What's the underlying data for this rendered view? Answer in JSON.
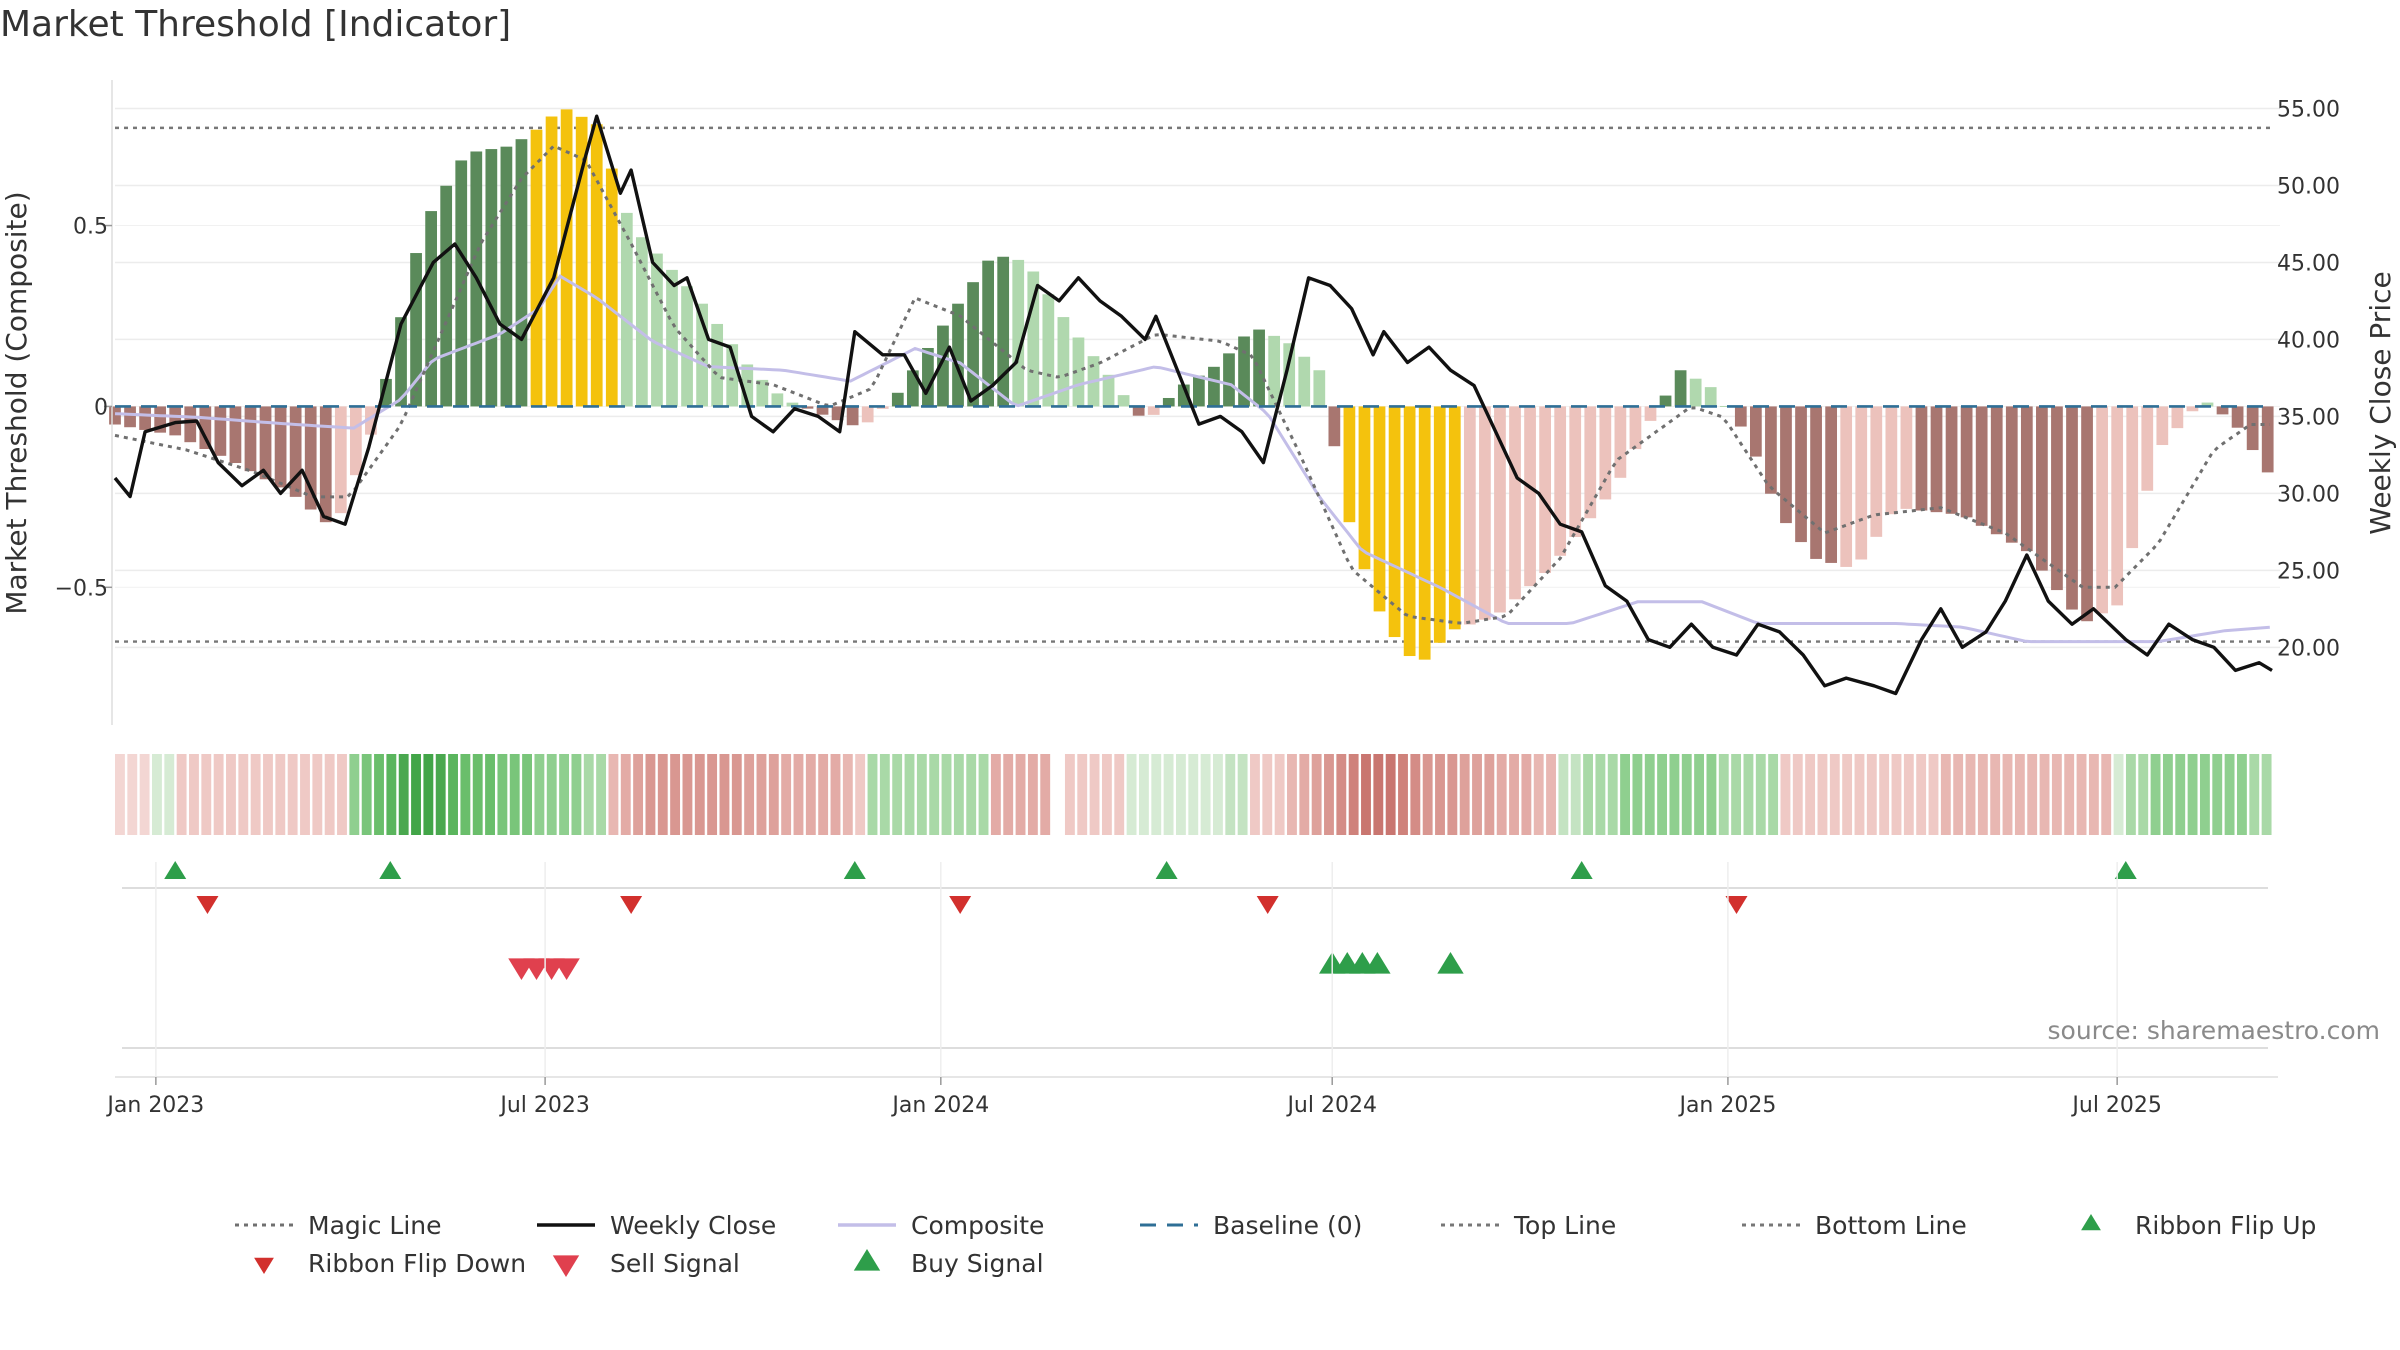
{
  "title": "Market Threshold [Indicator]",
  "source": "source: sharemaestro.com",
  "colors": {
    "bull_strong": "#5a8a5a",
    "bull_light": "#b0d8ae",
    "bear_strong": "#a87670",
    "bear_light": "#ecc2bc",
    "extreme": "#f4c20d",
    "weekly_close": "#111111",
    "composite": "#c3bee8",
    "magic_line": "#707070",
    "baseline": "#2f6f96",
    "threshold_line": "#777777",
    "signal_up": "#2e9e4a",
    "signal_down": "#d2302d",
    "sell_signal": "#e0404e"
  },
  "legend": [
    {
      "label": "Magic Line",
      "kind": "dotted",
      "color": "#707070"
    },
    {
      "label": "Weekly Close",
      "kind": "solid",
      "color": "#111111"
    },
    {
      "label": "Composite",
      "kind": "solid",
      "color": "#c3bee8"
    },
    {
      "label": "Baseline (0)",
      "kind": "dashed",
      "color": "#2f6f96"
    },
    {
      "label": "Top Line",
      "kind": "dotted",
      "color": "#777777"
    },
    {
      "label": "Bottom Line",
      "kind": "dotted",
      "color": "#777777"
    },
    {
      "label": "Ribbon Flip Up",
      "kind": "tri-up",
      "color": "#2e9e4a"
    },
    {
      "label": "Ribbon Flip Down",
      "kind": "tri-down",
      "color": "#d2302d"
    },
    {
      "label": "Sell Signal",
      "kind": "tri-down-lg",
      "color": "#e0404e"
    },
    {
      "label": "Buy Signal",
      "kind": "tri-up-lg",
      "color": "#2e9e4a"
    }
  ],
  "chart_data": {
    "type": "bar",
    "ylabel_left": "Market Threshold (Composite)",
    "ylabel_right": "Weekly Close Price",
    "ylim_left": [
      -0.9,
      0.93
    ],
    "ylim_right": [
      14.5,
      57.5
    ],
    "y_ticks_left": [
      {
        "value": 0.5,
        "label": "0.5"
      },
      {
        "value": 0,
        "label": "0"
      },
      {
        "value": -0.5,
        "label": "−0.5"
      }
    ],
    "y_ticks_right": [
      {
        "value": 55,
        "label": "55.00"
      },
      {
        "value": 50,
        "label": "50.00"
      },
      {
        "value": 45,
        "label": "45.00"
      },
      {
        "value": 40,
        "label": "40.00"
      },
      {
        "value": 35,
        "label": "35.00"
      },
      {
        "value": 30,
        "label": "30.00"
      },
      {
        "value": 25,
        "label": "25.00"
      },
      {
        "value": 20,
        "label": "20.00"
      }
    ],
    "x_range": [
      "2022-12-13",
      "2025-09-11"
    ],
    "x_ticks": [
      {
        "date": "2023-01-01",
        "label": "Jan 2023"
      },
      {
        "date": "2023-07-01",
        "label": "Jul 2023"
      },
      {
        "date": "2024-01-01",
        "label": "Jan 2024"
      },
      {
        "date": "2024-07-01",
        "label": "Jul 2024"
      },
      {
        "date": "2025-01-01",
        "label": "Jan 2025"
      },
      {
        "date": "2025-07-01",
        "label": "Jul 2025"
      }
    ],
    "top_line": 0.77,
    "bottom_line": -0.65,
    "baseline": 0,
    "composite_keypoints": [
      [
        "2022-12-13",
        -0.02
      ],
      [
        "2023-01-20",
        -0.03
      ],
      [
        "2023-03-07",
        -0.05
      ],
      [
        "2023-04-03",
        -0.06
      ],
      [
        "2023-04-25",
        0.02
      ],
      [
        "2023-05-10",
        0.13
      ],
      [
        "2023-06-10",
        0.2
      ],
      [
        "2023-06-28",
        0.27
      ],
      [
        "2023-07-08",
        0.36
      ],
      [
        "2023-07-25",
        0.3
      ],
      [
        "2023-08-20",
        0.18
      ],
      [
        "2023-09-15",
        0.11
      ],
      [
        "2023-10-20",
        0.1
      ],
      [
        "2023-11-20",
        0.07
      ],
      [
        "2023-12-20",
        0.16
      ],
      [
        "2024-01-10",
        0.12
      ],
      [
        "2024-02-05",
        0.0
      ],
      [
        "2024-03-05",
        0.06
      ],
      [
        "2024-04-10",
        0.11
      ],
      [
        "2024-05-15",
        0.06
      ],
      [
        "2024-06-01",
        -0.02
      ],
      [
        "2024-06-25",
        -0.25
      ],
      [
        "2024-07-15",
        -0.4
      ],
      [
        "2024-08-20",
        -0.5
      ],
      [
        "2024-09-20",
        -0.6
      ],
      [
        "2024-10-20",
        -0.6
      ],
      [
        "2024-11-20",
        -0.54
      ],
      [
        "2024-12-20",
        -0.54
      ],
      [
        "2025-01-15",
        -0.6
      ],
      [
        "2025-02-15",
        -0.6
      ],
      [
        "2025-03-20",
        -0.6
      ],
      [
        "2025-04-20",
        -0.61
      ],
      [
        "2025-05-20",
        -0.65
      ],
      [
        "2025-06-20",
        -0.65
      ],
      [
        "2025-07-20",
        -0.65
      ],
      [
        "2025-08-20",
        -0.62
      ],
      [
        "2025-09-11",
        -0.61
      ]
    ],
    "magic_line_keypoints": [
      [
        "2022-12-13",
        -0.08
      ],
      [
        "2023-01-15",
        -0.12
      ],
      [
        "2023-02-15",
        -0.18
      ],
      [
        "2023-03-15",
        -0.25
      ],
      [
        "2023-04-01",
        -0.25
      ],
      [
        "2023-04-25",
        -0.05
      ],
      [
        "2023-05-15",
        0.22
      ],
      [
        "2023-06-01",
        0.45
      ],
      [
        "2023-06-20",
        0.63
      ],
      [
        "2023-07-05",
        0.72
      ],
      [
        "2023-07-20",
        0.68
      ],
      [
        "2023-08-10",
        0.45
      ],
      [
        "2023-08-30",
        0.22
      ],
      [
        "2023-09-20",
        0.08
      ],
      [
        "2023-10-15",
        0.06
      ],
      [
        "2023-11-10",
        0.0
      ],
      [
        "2023-11-30",
        0.05
      ],
      [
        "2023-12-20",
        0.3
      ],
      [
        "2024-01-10",
        0.25
      ],
      [
        "2024-02-10",
        0.1
      ],
      [
        "2024-02-25",
        0.08
      ],
      [
        "2024-03-15",
        0.12
      ],
      [
        "2024-04-10",
        0.2
      ],
      [
        "2024-05-10",
        0.18
      ],
      [
        "2024-05-25",
        0.14
      ],
      [
        "2024-06-15",
        -0.12
      ],
      [
        "2024-07-10",
        -0.45
      ],
      [
        "2024-08-05",
        -0.58
      ],
      [
        "2024-08-30",
        -0.6
      ],
      [
        "2024-09-20",
        -0.58
      ],
      [
        "2024-10-15",
        -0.42
      ],
      [
        "2024-11-10",
        -0.15
      ],
      [
        "2024-12-15",
        0.0
      ],
      [
        "2024-12-30",
        -0.03
      ],
      [
        "2025-01-20",
        -0.22
      ],
      [
        "2025-02-15",
        -0.35
      ],
      [
        "2025-03-10",
        -0.3
      ],
      [
        "2025-04-10",
        -0.28
      ],
      [
        "2025-05-10",
        -0.35
      ],
      [
        "2025-06-15",
        -0.5
      ],
      [
        "2025-06-30",
        -0.5
      ],
      [
        "2025-07-20",
        -0.38
      ],
      [
        "2025-08-15",
        -0.12
      ],
      [
        "2025-09-01",
        -0.05
      ],
      [
        "2025-09-11",
        -0.05
      ]
    ],
    "weekly_close_keypoints": [
      [
        "2022-12-13",
        31.0
      ],
      [
        "2022-12-20",
        29.8
      ],
      [
        "2022-12-27",
        34.0
      ],
      [
        "2023-01-10",
        34.6
      ],
      [
        "2023-01-20",
        34.7
      ],
      [
        "2023-01-30",
        32.0
      ],
      [
        "2023-02-10",
        30.5
      ],
      [
        "2023-02-20",
        31.5
      ],
      [
        "2023-02-28",
        30.0
      ],
      [
        "2023-03-10",
        31.5
      ],
      [
        "2023-03-20",
        28.5
      ],
      [
        "2023-03-30",
        28.0
      ],
      [
        "2023-04-10",
        33.0
      ],
      [
        "2023-04-25",
        41.0
      ],
      [
        "2023-05-10",
        45.0
      ],
      [
        "2023-05-20",
        46.2
      ],
      [
        "2023-05-30",
        44.0
      ],
      [
        "2023-06-10",
        41.0
      ],
      [
        "2023-06-20",
        40.0
      ],
      [
        "2023-07-05",
        44.0
      ],
      [
        "2023-07-20",
        52.0
      ],
      [
        "2023-07-25",
        54.5
      ],
      [
        "2023-08-05",
        49.5
      ],
      [
        "2023-08-10",
        51.0
      ],
      [
        "2023-08-20",
        45.0
      ],
      [
        "2023-08-30",
        43.5
      ],
      [
        "2023-09-05",
        44.0
      ],
      [
        "2023-09-15",
        40.0
      ],
      [
        "2023-09-25",
        39.5
      ],
      [
        "2023-10-05",
        35.0
      ],
      [
        "2023-10-15",
        34.0
      ],
      [
        "2023-10-25",
        35.5
      ],
      [
        "2023-11-05",
        35.0
      ],
      [
        "2023-11-15",
        34.0
      ],
      [
        "2023-11-22",
        40.5
      ],
      [
        "2023-12-05",
        39.0
      ],
      [
        "2023-12-15",
        39.0
      ],
      [
        "2023-12-25",
        36.5
      ],
      [
        "2024-01-05",
        39.5
      ],
      [
        "2024-01-15",
        36.0
      ],
      [
        "2024-01-25",
        37.0
      ],
      [
        "2024-02-05",
        38.5
      ],
      [
        "2024-02-15",
        43.5
      ],
      [
        "2024-02-25",
        42.5
      ],
      [
        "2024-03-05",
        44.0
      ],
      [
        "2024-03-15",
        42.5
      ],
      [
        "2024-03-25",
        41.5
      ],
      [
        "2024-04-05",
        40.0
      ],
      [
        "2024-04-10",
        41.5
      ],
      [
        "2024-04-20",
        38.0
      ],
      [
        "2024-04-30",
        34.5
      ],
      [
        "2024-05-10",
        35.0
      ],
      [
        "2024-05-20",
        34.0
      ],
      [
        "2024-05-30",
        32.0
      ],
      [
        "2024-06-10",
        38.0
      ],
      [
        "2024-06-20",
        44.0
      ],
      [
        "2024-06-30",
        43.5
      ],
      [
        "2024-07-10",
        42.0
      ],
      [
        "2024-07-20",
        39.0
      ],
      [
        "2024-07-25",
        40.5
      ],
      [
        "2024-08-05",
        38.5
      ],
      [
        "2024-08-15",
        39.5
      ],
      [
        "2024-08-25",
        38.0
      ],
      [
        "2024-09-05",
        37.0
      ],
      [
        "2024-09-15",
        34.0
      ],
      [
        "2024-09-25",
        31.0
      ],
      [
        "2024-10-05",
        30.0
      ],
      [
        "2024-10-15",
        28.0
      ],
      [
        "2024-10-25",
        27.5
      ],
      [
        "2024-11-05",
        24.0
      ],
      [
        "2024-11-15",
        23.0
      ],
      [
        "2024-11-25",
        20.5
      ],
      [
        "2024-12-05",
        20.0
      ],
      [
        "2024-12-15",
        21.5
      ],
      [
        "2024-12-25",
        20.0
      ],
      [
        "2025-01-05",
        19.5
      ],
      [
        "2025-01-15",
        21.5
      ],
      [
        "2025-01-25",
        21.0
      ],
      [
        "2025-02-05",
        19.5
      ],
      [
        "2025-02-15",
        17.5
      ],
      [
        "2025-02-25",
        18.0
      ],
      [
        "2025-03-10",
        17.5
      ],
      [
        "2025-03-20",
        17.0
      ],
      [
        "2025-04-01",
        20.5
      ],
      [
        "2025-04-10",
        22.5
      ],
      [
        "2025-04-20",
        20.0
      ],
      [
        "2025-05-01",
        21.0
      ],
      [
        "2025-05-10",
        23.0
      ],
      [
        "2025-05-20",
        26.0
      ],
      [
        "2025-05-30",
        23.0
      ],
      [
        "2025-06-10",
        21.5
      ],
      [
        "2025-06-20",
        22.5
      ],
      [
        "2025-07-05",
        20.5
      ],
      [
        "2025-07-15",
        19.5
      ],
      [
        "2025-07-25",
        21.5
      ],
      [
        "2025-08-05",
        20.5
      ],
      [
        "2025-08-15",
        20.0
      ],
      [
        "2025-08-25",
        18.5
      ],
      [
        "2025-09-05",
        19.0
      ],
      [
        "2025-09-11",
        18.5
      ]
    ],
    "bar_keypoints": [
      [
        "2022-12-13",
        -0.05
      ],
      [
        "2023-01-10",
        -0.08
      ],
      [
        "2023-02-05",
        -0.15
      ],
      [
        "2023-03-05",
        -0.24
      ],
      [
        "2023-03-25",
        -0.34
      ],
      [
        "2023-04-10",
        -0.1
      ],
      [
        "2023-04-20",
        0.12
      ],
      [
        "2023-05-05",
        0.5
      ],
      [
        "2023-05-25",
        0.7
      ],
      [
        "2023-06-15",
        0.72
      ],
      [
        "2023-07-01",
        0.78
      ],
      [
        "2023-07-08",
        0.83
      ],
      [
        "2023-07-25",
        0.78
      ],
      [
        "2023-08-10",
        0.5
      ],
      [
        "2023-09-10",
        0.3
      ],
      [
        "2023-10-05",
        0.1
      ],
      [
        "2023-10-20",
        0.02
      ],
      [
        "2023-11-10",
        -0.03
      ],
      [
        "2023-11-25",
        -0.06
      ],
      [
        "2023-12-10",
        0.02
      ],
      [
        "2024-01-05",
        0.25
      ],
      [
        "2024-01-25",
        0.42
      ],
      [
        "2024-02-10",
        0.4
      ],
      [
        "2024-03-01",
        0.22
      ],
      [
        "2024-03-20",
        0.08
      ],
      [
        "2024-04-05",
        -0.05
      ],
      [
        "2024-04-20",
        0.05
      ],
      [
        "2024-05-10",
        0.12
      ],
      [
        "2024-05-25",
        0.22
      ],
      [
        "2024-06-10",
        0.18
      ],
      [
        "2024-06-25",
        0.1
      ],
      [
        "2024-07-10",
        -0.35
      ],
      [
        "2024-07-25",
        -0.6
      ],
      [
        "2024-08-10",
        -0.72
      ],
      [
        "2024-08-25",
        -0.62
      ],
      [
        "2024-09-15",
        -0.58
      ],
      [
        "2024-10-10",
        -0.45
      ],
      [
        "2024-11-10",
        -0.22
      ],
      [
        "2024-11-25",
        -0.05
      ],
      [
        "2024-12-10",
        0.1
      ],
      [
        "2024-12-25",
        0.05
      ],
      [
        "2025-01-10",
        -0.08
      ],
      [
        "2025-01-25",
        -0.3
      ],
      [
        "2025-02-10",
        -0.42
      ],
      [
        "2025-03-01",
        -0.45
      ],
      [
        "2025-03-20",
        -0.28
      ],
      [
        "2025-04-20",
        -0.3
      ],
      [
        "2025-05-20",
        -0.4
      ],
      [
        "2025-06-15",
        -0.6
      ],
      [
        "2025-07-01",
        -0.55
      ],
      [
        "2025-07-20",
        -0.12
      ],
      [
        "2025-08-10",
        0.02
      ],
      [
        "2025-08-25",
        -0.05
      ],
      [
        "2025-09-11",
        -0.2
      ]
    ],
    "ribbon_colors": [
      "#f3d6d3",
      "#f3d6d3",
      "#f3d6d3",
      "#d6ebd4",
      "#d6ebd4",
      "#efc9c5",
      "#efc9c5",
      "#efc9c5",
      "#efc9c5",
      "#efc9c5",
      "#efc9c5",
      "#efc9c5",
      "#efc9c5",
      "#efc9c5",
      "#efc9c5",
      "#efc9c5",
      "#efc9c5",
      "#efc9c5",
      "#efc9c5",
      "#8fcf8f",
      "#79c57a",
      "#6abe6b",
      "#5ab55d",
      "#4aa84f",
      "#42a548",
      "#42a548",
      "#4aa84f",
      "#5ab55d",
      "#6abe6b",
      "#6abe6b",
      "#6abe6b",
      "#79c57a",
      "#79c57a",
      "#79c57a",
      "#8fcf8f",
      "#8fcf8f",
      "#8fcf8f",
      "#8fcf8f",
      "#a9d9a7",
      "#a9d9a7",
      "#e8b7b2",
      "#e3aba6",
      "#dea19b",
      "#d99791",
      "#d99791",
      "#d99791",
      "#d99791",
      "#d99791",
      "#d99791",
      "#d99791",
      "#d99791",
      "#dea19b",
      "#dea19b",
      "#dea19b",
      "#e3aba6",
      "#e3aba6",
      "#e3aba6",
      "#e3aba6",
      "#e3aba6",
      "#e8b7b2",
      "#efc9c5",
      "#a9d9a7",
      "#a9d9a7",
      "#a9d9a7",
      "#a9d9a7",
      "#a9d9a7",
      "#a9d9a7",
      "#a9d9a7",
      "#a9d9a7",
      "#a9d9a7",
      "#a9d9a7",
      "#e3aba6",
      "#e3aba6",
      "#e3aba6",
      "#e3aba6",
      "#e3aba6",
      "#ffffff",
      "#efc9c5",
      "#efc9c5",
      "#efc9c5",
      "#efc9c5",
      "#efc9c5",
      "#d6ebd4",
      "#d6ebd4",
      "#d6ebd4",
      "#d6ebd4",
      "#d6ebd4",
      "#d6ebd4",
      "#d6ebd4",
      "#d6ebd4",
      "#c4e3c2",
      "#c4e3c2",
      "#efc9c5",
      "#efc9c5",
      "#efc9c5",
      "#e8b7b2",
      "#e3aba6",
      "#dea19b",
      "#d99791",
      "#d48c86",
      "#cf827b",
      "#c97670",
      "#c97670",
      "#c97670",
      "#cf827b",
      "#d48c86",
      "#d99791",
      "#d99791",
      "#d99791",
      "#dea19b",
      "#dea19b",
      "#dea19b",
      "#e3aba6",
      "#e3aba6",
      "#e3aba6",
      "#e8b7b2",
      "#e8b7b2",
      "#c4e3c2",
      "#c4e3c2",
      "#a9d9a7",
      "#a9d9a7",
      "#a9d9a7",
      "#8fcf8f",
      "#8fcf8f",
      "#8fcf8f",
      "#8fcf8f",
      "#8fcf8f",
      "#8fcf8f",
      "#8fcf8f",
      "#8fcf8f",
      "#a9d9a7",
      "#a9d9a7",
      "#a9d9a7",
      "#a9d9a7",
      "#a9d9a7",
      "#efc9c5",
      "#efc9c5",
      "#efc9c5",
      "#efc9c5",
      "#efc9c5",
      "#efc9c5",
      "#efc9c5",
      "#efc9c5",
      "#efc9c5",
      "#efc9c5",
      "#efc9c5",
      "#efc9c5",
      "#efc9c5",
      "#e8b7b2",
      "#e8b7b2",
      "#e8b7b2",
      "#e8b7b2",
      "#e8b7b2",
      "#e8b7b2",
      "#e8b7b2",
      "#e8b7b2",
      "#e8b7b2",
      "#e8b7b2",
      "#e8b7b2",
      "#e8b7b2",
      "#e8b7b2",
      "#e8b7b2",
      "#d6ebd4",
      "#a9d9a7",
      "#a9d9a7",
      "#8fcf8f",
      "#8fcf8f",
      "#8fcf8f",
      "#8fcf8f",
      "#8fcf8f",
      "#8fcf8f",
      "#8fcf8f",
      "#8fcf8f",
      "#a9d9a7",
      "#a9d9a7"
    ],
    "ribbon_flip_up": [
      "2023-01-10",
      "2023-04-20",
      "2023-11-22",
      "2024-04-15",
      "2024-10-25",
      "2025-07-05"
    ],
    "ribbon_flip_down": [
      "2023-01-25",
      "2023-08-10",
      "2024-01-10",
      "2024-06-01",
      "2025-01-05"
    ],
    "sell_signals": [
      "2023-06-20",
      "2023-06-27",
      "2023-07-04",
      "2023-07-11"
    ],
    "buy_signals": [
      "2024-07-01",
      "2024-07-08",
      "2024-07-15",
      "2024-07-22",
      "2024-08-25"
    ]
  }
}
